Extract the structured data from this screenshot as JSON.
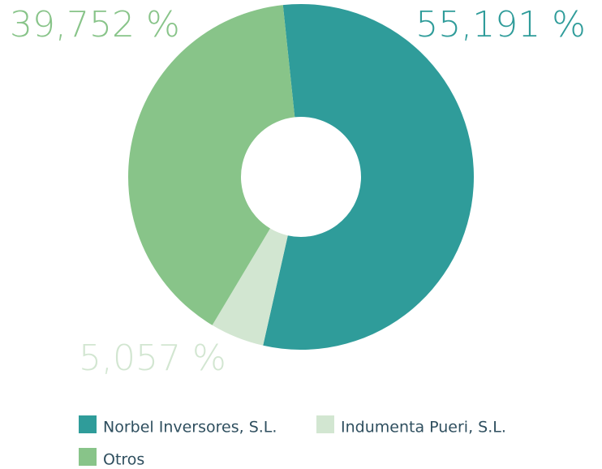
{
  "chart_data": {
    "type": "donut",
    "categories": [
      "Norbel Inversores, S.L.",
      "Indumenta Pueri, S.L.",
      "Otros"
    ],
    "values": [
      55.191,
      5.057,
      39.752
    ],
    "value_labels": [
      "55,191 %",
      "5,057 %",
      "39,752 %"
    ],
    "colors": [
      "#2f9c9a",
      "#d2e6d1",
      "#88c489"
    ]
  }
}
